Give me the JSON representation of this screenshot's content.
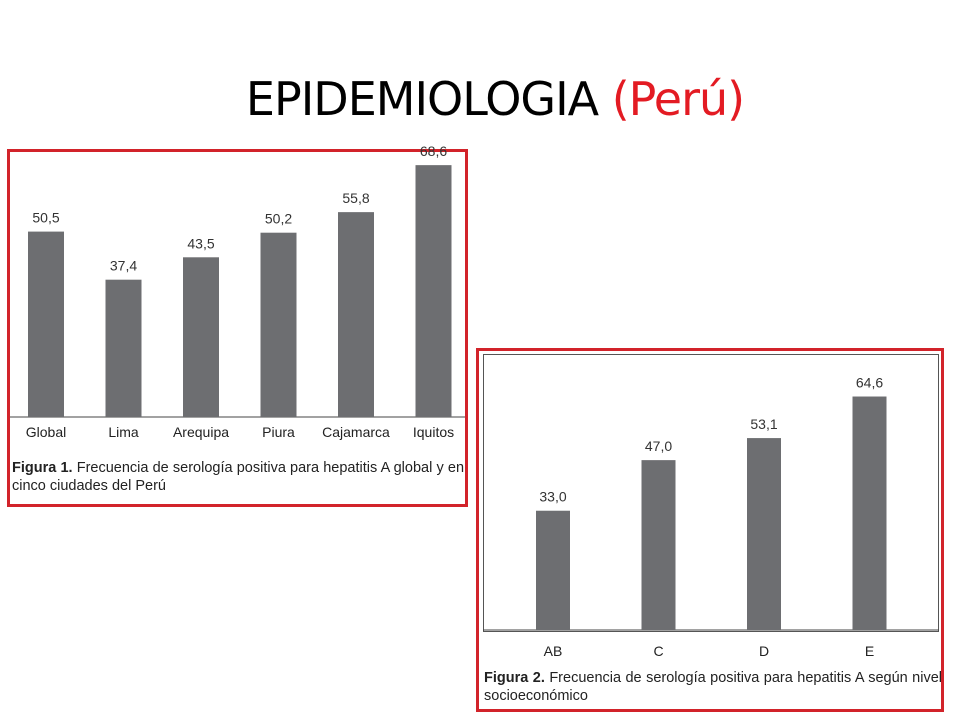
{
  "slide": {
    "title_main": "EPIDEMIOLOGIA",
    "title_accent": "(Perú)"
  },
  "colors": {
    "frame": "#d2232a",
    "bar": "#6d6e71",
    "accent": "#e31b23"
  },
  "chart_data": [
    {
      "type": "bar",
      "categories": [
        "Global",
        "Lima",
        "Arequipa",
        "Piura",
        "Cajamarca",
        "Iquitos"
      ],
      "values": [
        50.5,
        37.4,
        43.5,
        50.2,
        55.8,
        68.6
      ],
      "value_labels": [
        "50,5",
        "37,4",
        "43,5",
        "50,2",
        "55,8",
        "68,6"
      ],
      "caption_label": "Figura 1.",
      "caption_text": "Frecuencia de serología positiva para hepatitis A global y en cinco ciudades del Perú",
      "ylim": [
        0,
        70
      ]
    },
    {
      "type": "bar",
      "categories": [
        "AB",
        "C",
        "D",
        "E"
      ],
      "values": [
        33.0,
        47.0,
        53.1,
        64.6
      ],
      "value_labels": [
        "33,0",
        "47,0",
        "53,1",
        "64,6"
      ],
      "caption_label": "Figura 2.",
      "caption_text": "Frecuencia de serología positiva para hepatitis A según nivel socioeconómico",
      "ylim": [
        0,
        70
      ]
    }
  ]
}
